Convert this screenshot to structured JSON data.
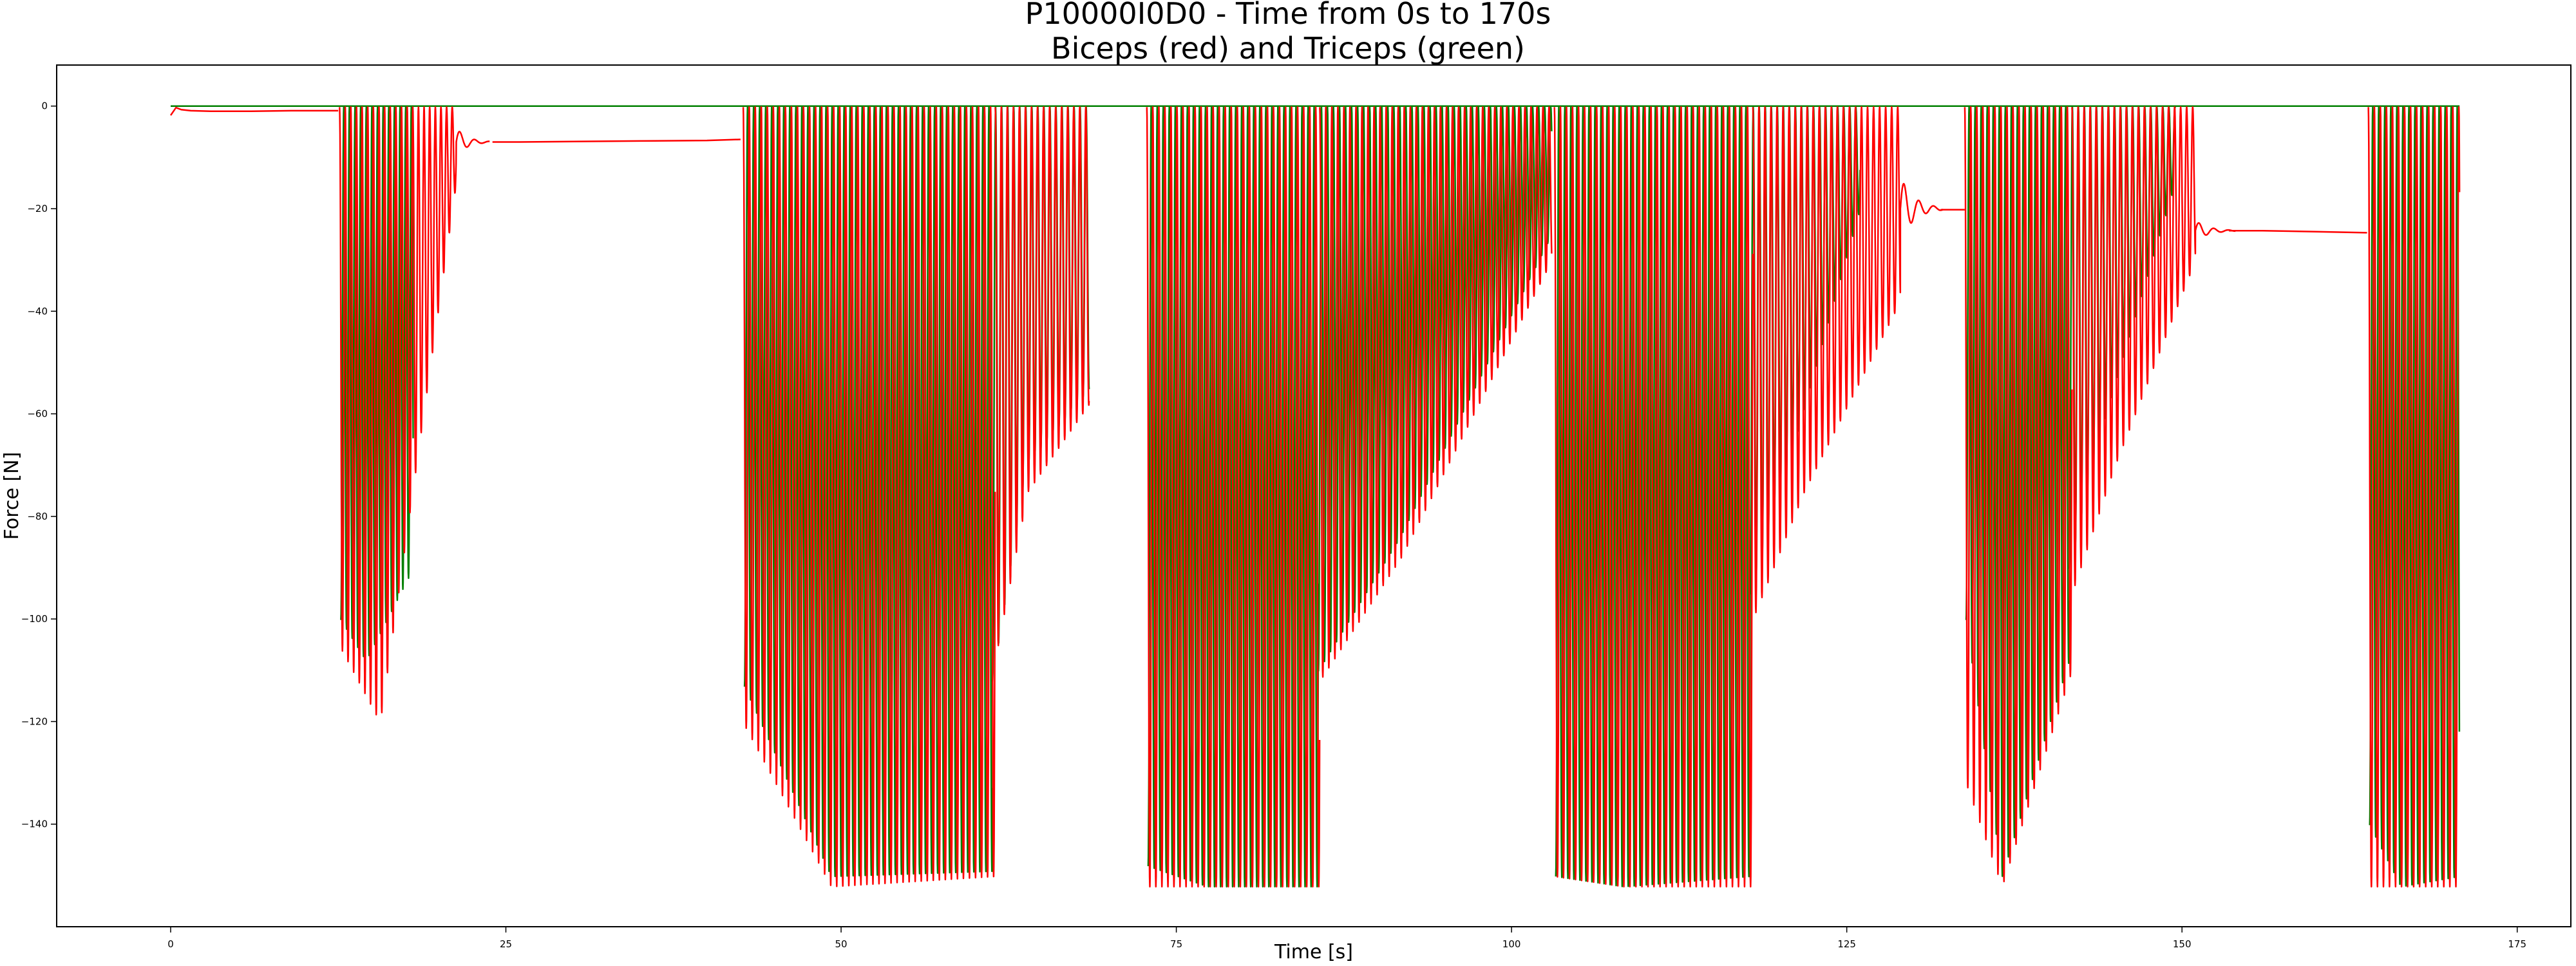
{
  "chart_data": {
    "type": "line",
    "title": "P10000I0D0 - Time from 0s to 170s",
    "subtitle": "Biceps (red) and Triceps (green)",
    "xlabel": "Time [s]",
    "ylabel": "Force [N]",
    "xlim": [
      -8.5,
      179
    ],
    "ylim": [
      -160,
      8
    ],
    "xticks": [
      0,
      25,
      50,
      75,
      100,
      125,
      150,
      175
    ],
    "yticks": [
      0,
      -20,
      -40,
      -60,
      -80,
      -100,
      -120,
      -140
    ],
    "grid": false,
    "legend": "none",
    "series": [
      {
        "color": "#ff0000",
        "baseline_segments": [
          {
            "x": [
              0,
              0.4,
              0.8,
              1.5,
              3,
              6,
              9,
              12.5
            ],
            "y": [
              -1.8,
              -0.3,
              -0.7,
              -0.9,
              -1.0,
              -1.0,
              -0.9,
              -0.9
            ]
          },
          {
            "x": [
              24,
              26,
              30,
              35,
              40,
              42.5
            ],
            "y": [
              -7.0,
              -7.0,
              -6.9,
              -6.8,
              -6.7,
              -6.5
            ]
          },
          {
            "x": [
              132,
              133.8
            ],
            "y": [
              -20.2,
              -20.2
            ]
          },
          {
            "x": [
              153.5,
              156,
              160,
              163.8
            ],
            "y": [
              -24.3,
              -24.3,
              -24.5,
              -24.7
            ]
          }
        ],
        "bursts": [
          {
            "start": 12.6,
            "end": 21.3,
            "period": 0.42,
            "start_depth": -105,
            "peak_depth": -120,
            "end_depth": -15,
            "ringdown": 2.5,
            "ringdown_center": -7
          },
          {
            "start": 42.7,
            "end": 61.5,
            "period": 0.45,
            "start_depth": -120,
            "peak_depth": -152,
            "end_depth": -150,
            "ringdown": 0,
            "ringdown_center": -0.5
          },
          {
            "start": 61.5,
            "end": 68.5,
            "period": 0.45,
            "start_depth": -108,
            "peak_depth": -75,
            "end_depth": -58,
            "ringdown": 0,
            "ringdown_center": -0.5
          },
          {
            "start": 72.8,
            "end": 85.7,
            "period": 0.45,
            "start_depth": -152,
            "peak_depth": -152,
            "end_depth": -152,
            "ringdown": 0,
            "ringdown_center": -0.5
          },
          {
            "start": 85.7,
            "end": 103.0,
            "period": 0.45,
            "start_depth": -112,
            "peak_depth": -88,
            "end_depth": -30,
            "ringdown": 0,
            "ringdown_center": -0.5
          },
          {
            "start": 103.2,
            "end": 118.0,
            "period": 0.45,
            "start_depth": -150,
            "peak_depth": -152,
            "end_depth": -152,
            "ringdown": 0,
            "ringdown_center": -0.5
          },
          {
            "start": 118.0,
            "end": 129.0,
            "period": 0.45,
            "start_depth": -100,
            "peak_depth": -75,
            "end_depth": -38,
            "ringdown": 3.2,
            "ringdown_center": -20
          },
          {
            "start": 133.8,
            "end": 141.8,
            "period": 0.45,
            "start_depth": -131,
            "peak_depth": -152,
            "end_depth": -110,
            "ringdown": 0,
            "ringdown_center": -0.5
          },
          {
            "start": 141.8,
            "end": 151.0,
            "period": 0.45,
            "start_depth": -95,
            "peak_depth": -70,
            "end_depth": -30,
            "ringdown": 3.0,
            "ringdown_center": -24.3
          },
          {
            "start": 163.9,
            "end": 170.7,
            "period": 0.45,
            "start_depth": -152,
            "peak_depth": -152,
            "end_depth": -152,
            "ringdown": 0,
            "ringdown_center": -0.5
          }
        ]
      },
      {
        "color": "#008000",
        "baseline_value": 0,
        "bursts": [
          {
            "start": 12.7,
            "end": 18.1,
            "period": 0.42,
            "start_depth": -100,
            "peak_depth": -108,
            "end_depth": -90
          },
          {
            "start": 42.8,
            "end": 61.3,
            "period": 0.45,
            "start_depth": -113,
            "peak_depth": -150,
            "end_depth": -149
          },
          {
            "start": 61.3,
            "end": 68.5,
            "period": 0.45,
            "start_depth": -112,
            "peak_depth": -70,
            "end_depth": -55
          },
          {
            "start": 72.9,
            "end": 85.6,
            "period": 0.45,
            "start_depth": -148,
            "peak_depth": -152,
            "end_depth": -152
          },
          {
            "start": 85.6,
            "end": 103.0,
            "period": 0.45,
            "start_depth": -110,
            "peak_depth": -84,
            "end_depth": -25
          },
          {
            "start": 103.3,
            "end": 117.8,
            "period": 0.45,
            "start_depth": -150,
            "peak_depth": -152,
            "end_depth": -150
          },
          {
            "start": 117.8,
            "end": 126.0,
            "period": 0.45,
            "start_depth": -95,
            "peak_depth": -70,
            "end_depth": -20
          },
          {
            "start": 133.9,
            "end": 141.6,
            "period": 0.45,
            "start_depth": -100,
            "peak_depth": -150,
            "end_depth": -108
          },
          {
            "start": 141.6,
            "end": 149.5,
            "period": 0.45,
            "start_depth": -90,
            "peak_depth": -60,
            "end_depth": -15
          },
          {
            "start": 164.0,
            "end": 170.7,
            "period": 0.45,
            "start_depth": -140,
            "peak_depth": -152,
            "end_depth": -150
          }
        ]
      }
    ]
  }
}
